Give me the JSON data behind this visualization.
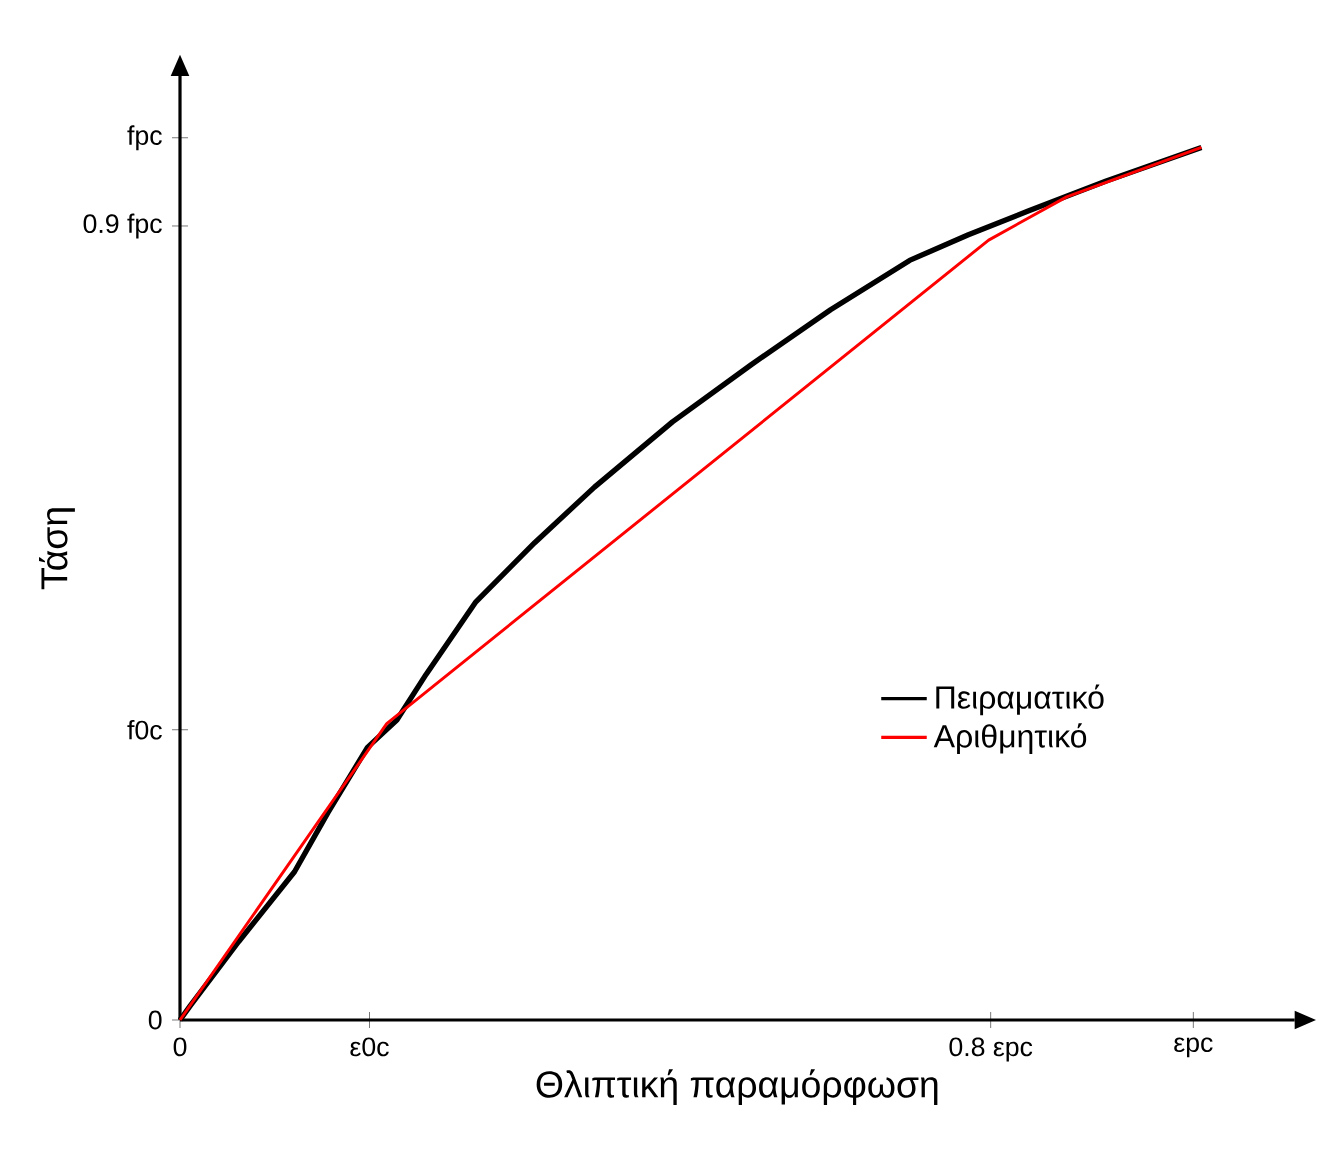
{
  "chart_data": {
    "type": "line",
    "xlabel": "Θλιπτική παραμόρφωση",
    "ylabel": "Τάση",
    "xlim": [
      0,
      1.1
    ],
    "ylim": [
      0,
      1.07
    ],
    "xticks": [
      0,
      {
        "value": 0.187,
        "label": "ε0c"
      },
      {
        "value": 0.8,
        "label": "0.8 εpc"
      },
      {
        "value": 1,
        "label": "εpc"
      }
    ],
    "yticks": [
      0,
      {
        "value": 0.329,
        "label": "f0c"
      },
      {
        "value": 0.9,
        "label": "0.9 fpc"
      },
      {
        "value": 1,
        "label": "fpc"
      }
    ],
    "grid": false,
    "legend": "right",
    "marker": "none",
    "line_style": "solid",
    "series": [
      {
        "name": "Πειραματικό",
        "color": "#000000",
        "x": [
          0,
          0.01,
          0.058,
          0.113,
          0.146,
          0.185,
          0.214,
          0.243,
          0.292,
          0.35,
          0.409,
          0.486,
          0.564,
          0.642,
          0.72,
          0.778,
          0.837,
          0.914,
          1.008
        ],
        "values": [
          0,
          0.016,
          0.089,
          0.168,
          0.235,
          0.309,
          0.34,
          0.392,
          0.474,
          0.541,
          0.604,
          0.678,
          0.743,
          0.805,
          0.861,
          0.89,
          0.917,
          0.951,
          0.989
        ]
      },
      {
        "name": "Αριθμητικό",
        "color": "#ff0000",
        "x": [
          0,
          0.204,
          0.798,
          0.875,
          1.008
        ],
        "values": [
          0,
          0.336,
          0.884,
          0.933,
          0.989
        ]
      }
    ]
  }
}
